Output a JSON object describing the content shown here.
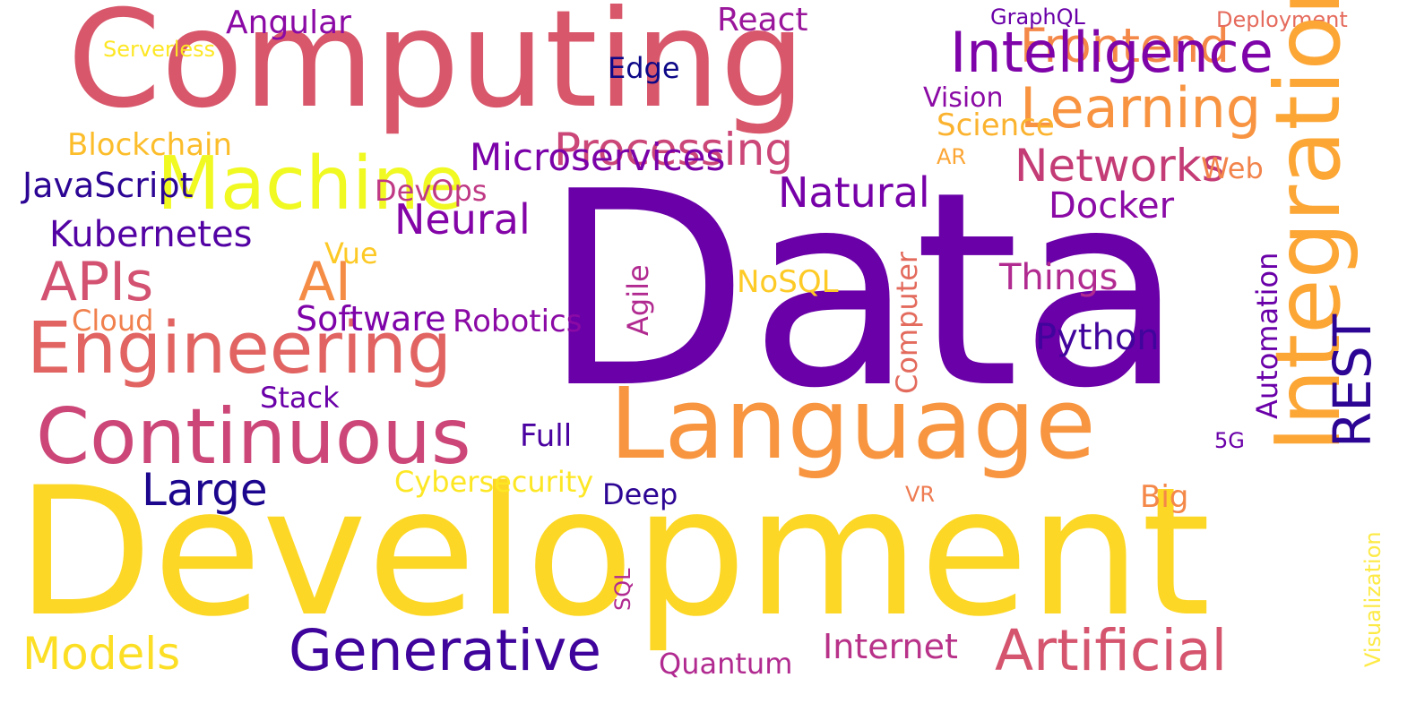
{
  "words": [
    {
      "text": "Data",
      "color": "#6a00a8"
    },
    {
      "text": "Development",
      "color": "#fdd726"
    },
    {
      "text": "Computing",
      "color": "#d8576b"
    },
    {
      "text": "Language",
      "color": "#f89540"
    },
    {
      "text": "Continuous",
      "color": "#cc4778"
    },
    {
      "text": "Engineering",
      "color": "#e16462"
    },
    {
      "text": "Generative",
      "color": "#3f049b"
    },
    {
      "text": "Artificial",
      "color": "#d5546e"
    },
    {
      "text": "Learning",
      "color": "#f89441"
    },
    {
      "text": "Frontend",
      "color": "#f48849"
    },
    {
      "text": "Machine",
      "color": "#f0f921"
    },
    {
      "text": "Intelligence",
      "color": "#7e03a8"
    },
    {
      "text": "APIs",
      "color": "#d35171"
    },
    {
      "text": "AI",
      "color": "#f58c46"
    },
    {
      "text": "Models",
      "color": "#fcdf25"
    },
    {
      "text": "Large",
      "color": "#1b068d"
    },
    {
      "text": "Processing",
      "color": "#cb4778"
    },
    {
      "text": "Networks",
      "color": "#c43c75"
    },
    {
      "text": "Natural",
      "color": "#7701a8"
    },
    {
      "text": "Neural",
      "color": "#8405a7"
    },
    {
      "text": "Angular",
      "color": "#8b0aa5"
    },
    {
      "text": "React",
      "color": "#9a179b"
    },
    {
      "text": "Kubernetes",
      "color": "#5302a3"
    },
    {
      "text": "Blockchain",
      "color": "#fcbd2b"
    },
    {
      "text": "JavaScript",
      "color": "#2c0594"
    },
    {
      "text": "Microservices",
      "color": "#7a02a8"
    },
    {
      "text": "DevOps",
      "color": "#bf3984"
    },
    {
      "text": "Vue",
      "color": "#fdc926"
    },
    {
      "text": "Software",
      "color": "#7e03a8"
    },
    {
      "text": "Robotics",
      "color": "#8b0aa5"
    },
    {
      "text": "Cloud",
      "color": "#f0804d"
    },
    {
      "text": "Stack",
      "color": "#6a00a8"
    },
    {
      "text": "Full",
      "color": "#4a02a0"
    },
    {
      "text": "Cybersecurity",
      "color": "#fde725"
    },
    {
      "text": "Deep",
      "color": "#2c0594"
    },
    {
      "text": "Quantum",
      "color": "#b12a90"
    },
    {
      "text": "Internet",
      "color": "#b83289"
    },
    {
      "text": "Things",
      "color": "#b12a90"
    },
    {
      "text": "Python",
      "color": "#41049d"
    },
    {
      "text": "Docker",
      "color": "#8b0aa5"
    },
    {
      "text": "Big",
      "color": "#f48849"
    },
    {
      "text": "Science",
      "color": "#fbb32f"
    },
    {
      "text": "Vision",
      "color": "#8b0aa5"
    },
    {
      "text": "Edge",
      "color": "#0d0887"
    },
    {
      "text": "AR",
      "color": "#fca636"
    },
    {
      "text": "Web",
      "color": "#f2844b"
    },
    {
      "text": "NoSQL",
      "color": "#fdca26"
    },
    {
      "text": "5G",
      "color": "#6a00a8"
    },
    {
      "text": "VR",
      "color": "#ee7b51"
    },
    {
      "text": "GraphQL",
      "color": "#6a00a8"
    },
    {
      "text": "Deployment",
      "color": "#e56b5d"
    },
    {
      "text": "Serverless",
      "color": "#fde725"
    },
    {
      "text": "Integration",
      "color": "#fca636"
    },
    {
      "text": "REST",
      "color": "#2c0594"
    },
    {
      "text": "Agile",
      "color": "#b12a90"
    },
    {
      "text": "Computer",
      "color": "#e36b5d"
    },
    {
      "text": "Automation",
      "color": "#6a00a8"
    },
    {
      "text": "SQL",
      "color": "#b12a90"
    },
    {
      "text": "Visualization",
      "color": "#fdea45"
    }
  ]
}
